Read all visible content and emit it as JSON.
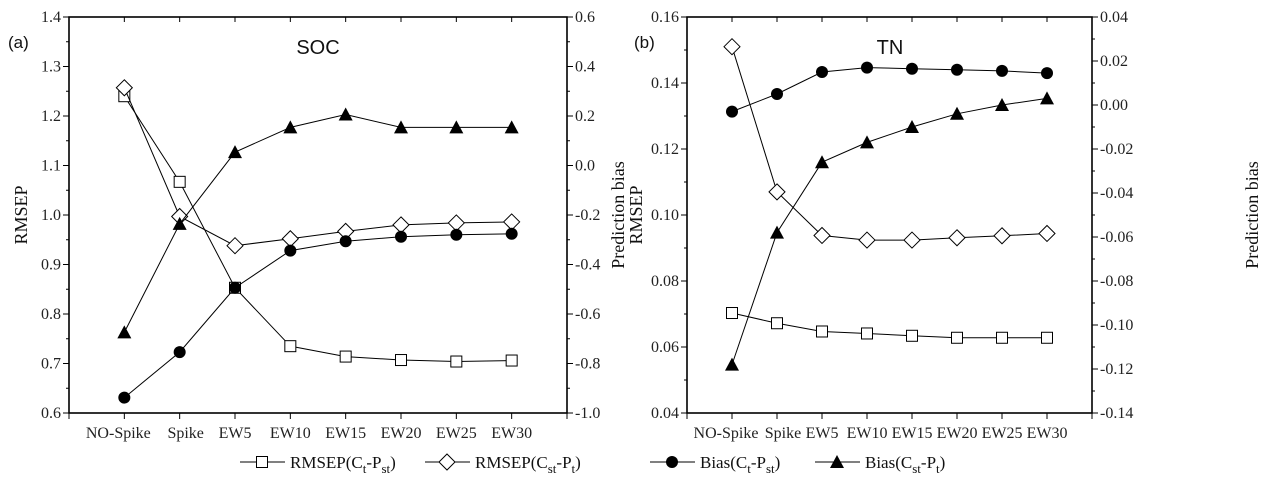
{
  "chart_data": [
    {
      "type": "line",
      "panel_label": "(a)",
      "title": "SOC",
      "categories": [
        "NO-Spike",
        "Spike",
        "EW5",
        "EW10",
        "EW15",
        "EW20",
        "EW25",
        "EW30"
      ],
      "ylabel": "RMSEP",
      "y2label": "Prediction bias",
      "ylim": [
        0.6,
        1.4
      ],
      "y2lim": [
        -1.0,
        0.6
      ],
      "yticks": [
        "0.6",
        "0.7",
        "0.8",
        "0.9",
        "1.0",
        "1.1",
        "1.2",
        "1.3",
        "1.4"
      ],
      "y2ticks": [
        "-1.0",
        "-0.8",
        "-0.6",
        "-0.4",
        "-0.2",
        "0.0",
        "0.2",
        "0.4",
        "0.6"
      ],
      "grid": false,
      "series": [
        {
          "name": "RMSEP(Ct-Pst)",
          "axis": "left",
          "marker": "square-open",
          "values": [
            1.24,
            1.067,
            0.853,
            0.735,
            0.714,
            0.707,
            0.704,
            0.706
          ]
        },
        {
          "name": "RMSEP(Cst-Pt)",
          "axis": "left",
          "marker": "diamond-open",
          "values": [
            1.257,
            0.997,
            0.938,
            0.952,
            0.967,
            0.98,
            0.984,
            0.986
          ]
        },
        {
          "name": "Bias(Ct-Pst)",
          "axis": "right",
          "marker": "circle-filled",
          "values": [
            -0.938,
            -0.754,
            -0.494,
            -0.344,
            -0.306,
            -0.288,
            -0.28,
            -0.276
          ]
        },
        {
          "name": "Bias(Cst-Pt)",
          "axis": "right",
          "marker": "triangle-filled",
          "values": [
            -0.674,
            -0.236,
            0.054,
            0.154,
            0.206,
            0.154,
            0.154,
            0.154
          ]
        }
      ]
    },
    {
      "type": "line",
      "panel_label": "(b)",
      "title": "TN",
      "categories": [
        "NO-Spike",
        "Spike",
        "EW5",
        "EW10",
        "EW15",
        "EW20",
        "EW25",
        "EW30"
      ],
      "ylabel": "RMSEP",
      "y2label": "Prediction bias",
      "ylim": [
        0.04,
        0.16
      ],
      "y2lim": [
        -0.14,
        0.04
      ],
      "yticks": [
        "0.04",
        "0.06",
        "0.08",
        "0.10",
        "0.12",
        "0.14",
        "0.16"
      ],
      "y2ticks": [
        "-0.14",
        "-0.12",
        "-0.10",
        "-0.08",
        "-0.06",
        "-0.04",
        "-0.02",
        "0.00",
        "0.02",
        "0.04"
      ],
      "grid": false,
      "series": [
        {
          "name": "RMSEP(Ct-Pst)",
          "axis": "left",
          "marker": "square-open",
          "values": [
            0.0703,
            0.0672,
            0.0647,
            0.0641,
            0.0634,
            0.0628,
            0.0628,
            0.0628
          ]
        },
        {
          "name": "RMSEP(Cst-Pt)",
          "axis": "left",
          "marker": "diamond-open",
          "values": [
            0.151,
            0.107,
            0.0938,
            0.0924,
            0.0924,
            0.0931,
            0.0937,
            0.0944
          ]
        },
        {
          "name": "Bias(Ct-Pst)",
          "axis": "right",
          "marker": "circle-filled",
          "values": [
            -0.003,
            0.005,
            0.015,
            0.017,
            0.0165,
            0.016,
            0.0155,
            0.0145
          ]
        },
        {
          "name": "Bias(Cst-Pt)",
          "axis": "right",
          "marker": "triangle-filled",
          "values": [
            -0.118,
            -0.058,
            -0.026,
            -0.017,
            -0.01,
            -0.004,
            0.0,
            0.003
          ]
        }
      ]
    }
  ],
  "legend": {
    "placement": "bottom",
    "entries": [
      {
        "marker": "square-open",
        "pre": "RMSEP(C",
        "s1": "t",
        "mid": "-P",
        "s2": "st",
        "post": ")"
      },
      {
        "marker": "diamond-open",
        "pre": "RMSEP(C",
        "s1": "st",
        "mid": "-P",
        "s2": "t",
        "post": ")"
      },
      {
        "marker": "circle-filled",
        "pre": "Bias(C",
        "s1": "t",
        "mid": "-P",
        "s2": "st",
        "post": ")"
      },
      {
        "marker": "triangle-filled",
        "pre": "Bias(C",
        "s1": "st",
        "mid": "-P",
        "s2": "t",
        "post": ")"
      }
    ]
  }
}
